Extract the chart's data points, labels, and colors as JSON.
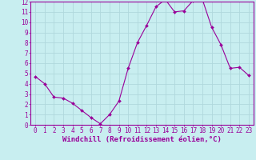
{
  "x": [
    0,
    1,
    2,
    3,
    4,
    5,
    6,
    7,
    8,
    9,
    10,
    11,
    12,
    13,
    14,
    15,
    16,
    17,
    18,
    19,
    20,
    21,
    22,
    23
  ],
  "y": [
    4.7,
    4.0,
    2.7,
    2.6,
    2.1,
    1.4,
    0.7,
    0.1,
    1.0,
    2.3,
    5.5,
    8.0,
    9.7,
    11.5,
    12.2,
    11.0,
    11.1,
    12.1,
    12.2,
    9.5,
    7.8,
    5.5,
    5.6,
    4.8
  ],
  "line_color": "#990099",
  "marker": "D",
  "marker_size": 2,
  "background_color": "#c8eef0",
  "grid_color": "#b0d8dc",
  "xlabel": "Windchill (Refroidissement éolien,°C)",
  "xlabel_fontsize": 6.5,
  "xlim": [
    -0.5,
    23.5
  ],
  "ylim": [
    0,
    12
  ],
  "xtick_labels": [
    "0",
    "1",
    "2",
    "3",
    "4",
    "5",
    "6",
    "7",
    "8",
    "9",
    "10",
    "11",
    "12",
    "13",
    "14",
    "15",
    "16",
    "17",
    "18",
    "19",
    "20",
    "21",
    "22",
    "23"
  ],
  "ytick_values": [
    0,
    1,
    2,
    3,
    4,
    5,
    6,
    7,
    8,
    9,
    10,
    11,
    12
  ],
  "tick_fontsize": 5.5,
  "label_color": "#990099",
  "border_color": "#990099"
}
